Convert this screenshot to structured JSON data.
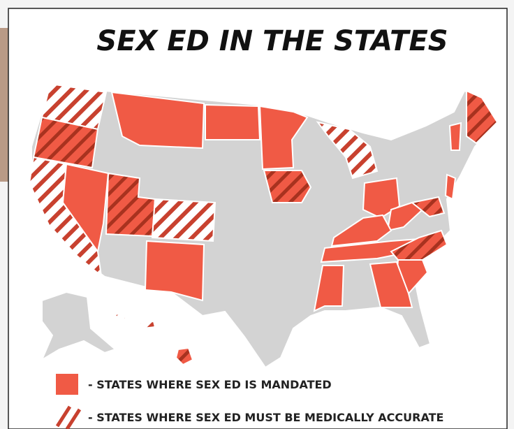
{
  "header": {
    "title": "SEX ED IN THE STATES"
  },
  "legend": [
    {
      "label": "- STATES WHERE SEX ED IS MANDATED"
    },
    {
      "label": "- STATES WHERE SEX ED MUST BE MEDICALLY ACCURATE"
    }
  ]
}
